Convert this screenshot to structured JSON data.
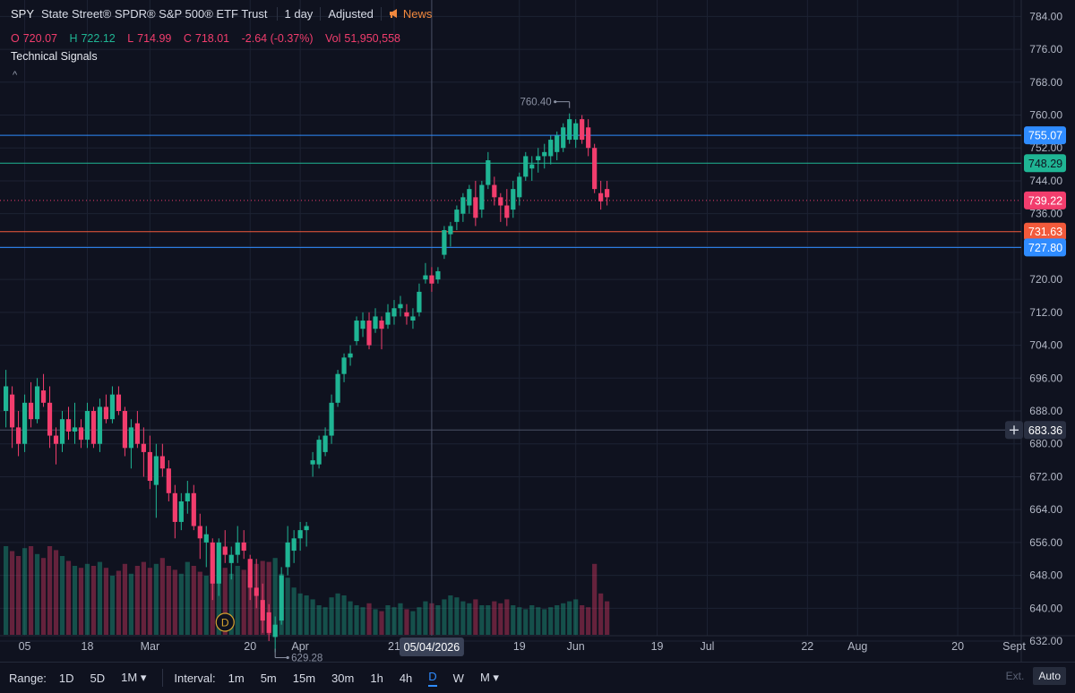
{
  "header": {
    "symbol": "SPY",
    "description": "State Street® SPDR® S&P 500® ETF Trust",
    "interval": "1 day",
    "adjusted": "Adjusted",
    "news": "News",
    "technical_signals": "Technical Signals",
    "collapse_caret": "^"
  },
  "ohlc": {
    "o_label": "O",
    "o": "720.07",
    "h_label": "H",
    "h": "722.12",
    "l_label": "L",
    "l": "714.99",
    "c_label": "C",
    "c": "718.01",
    "change": "-2.64 (-0.37%)",
    "vol_label": "Vol",
    "vol": "51,950,558"
  },
  "toolbar": {
    "range_label": "Range:",
    "ranges": [
      "1D",
      "5D",
      "1M ▾"
    ],
    "interval_label": "Interval:",
    "intervals": [
      "1m",
      "5m",
      "15m",
      "30m",
      "1h",
      "4h",
      "D",
      "W",
      "M ▾"
    ],
    "active_interval": "D",
    "ext": "Ext.",
    "auto": "Auto"
  },
  "chart_data": {
    "type": "candlestick",
    "y_range": [
      627,
      788
    ],
    "y_ticks": [
      632,
      640,
      648,
      656,
      664,
      672,
      680,
      688,
      696,
      704,
      712,
      720,
      728,
      736,
      744,
      752,
      760,
      768,
      776,
      784
    ],
    "y_tick_labels": [
      "632.00",
      "640.00",
      "648.00",
      "656.00",
      "664.00",
      "672.00",
      "680.00",
      "688.00",
      "696.00",
      "704.00",
      "712.00",
      "720.00",
      "728.00",
      "736.00",
      "744.00",
      "752.00",
      "760.00",
      "768.00",
      "776.00",
      "784.00"
    ],
    "x_tick_labels": [
      {
        "label": "05",
        "day": 3
      },
      {
        "label": "18",
        "day": 13
      },
      {
        "label": "Mar",
        "day": 23
      },
      {
        "label": "20",
        "day": 39
      },
      {
        "label": "Apr",
        "day": 47
      },
      {
        "label": "21",
        "day": 62
      },
      {
        "label": "19",
        "day": 82
      },
      {
        "label": "Jun",
        "day": 91
      },
      {
        "label": "19",
        "day": 104
      },
      {
        "label": "Jul",
        "day": 112
      },
      {
        "label": "22",
        "day": 128
      },
      {
        "label": "Aug",
        "day": 136
      },
      {
        "label": "20",
        "day": 152
      },
      {
        "label": "Sept",
        "day": 161
      }
    ],
    "crosshair": {
      "day": 68,
      "date_label": "05/04/2026",
      "price_label": "683.36",
      "price": 683.36
    },
    "price_lines": [
      {
        "price": 755.07,
        "label": "755.07",
        "color": "#2f8cff"
      },
      {
        "price": 748.29,
        "label": "748.29",
        "color": "#1fb594"
      },
      {
        "price": 739.22,
        "label": "739.22",
        "color": "#f23d6d",
        "dashed": true
      },
      {
        "price": 731.63,
        "label": "731.63",
        "color": "#f25a3b"
      },
      {
        "price": 727.8,
        "label": "727.80",
        "color": "#2f8cff"
      }
    ],
    "high_marker": {
      "day": 90,
      "price": 760.4,
      "label": "760.40"
    },
    "low_marker": {
      "day": 43,
      "price": 629.28,
      "label": "629.28"
    },
    "event_marker": {
      "day": 35,
      "label": "D"
    },
    "candles": [
      {
        "d": 0,
        "o": 688,
        "h": 698,
        "l": 684,
        "c": 694
      },
      {
        "d": 1,
        "o": 692,
        "h": 694,
        "l": 679,
        "c": 684
      },
      {
        "d": 2,
        "o": 684,
        "h": 688,
        "l": 677,
        "c": 680
      },
      {
        "d": 3,
        "o": 680,
        "h": 692,
        "l": 678,
        "c": 690
      },
      {
        "d": 4,
        "o": 690,
        "h": 695,
        "l": 684,
        "c": 686
      },
      {
        "d": 5,
        "o": 686,
        "h": 696,
        "l": 685,
        "c": 694
      },
      {
        "d": 6,
        "o": 693,
        "h": 697,
        "l": 689,
        "c": 690
      },
      {
        "d": 7,
        "o": 690,
        "h": 694,
        "l": 679,
        "c": 682
      },
      {
        "d": 8,
        "o": 682,
        "h": 684,
        "l": 675,
        "c": 680
      },
      {
        "d": 9,
        "o": 680,
        "h": 688,
        "l": 678,
        "c": 686
      },
      {
        "d": 10,
        "o": 686,
        "h": 689,
        "l": 681,
        "c": 683
      },
      {
        "d": 11,
        "o": 683,
        "h": 690,
        "l": 680,
        "c": 684
      },
      {
        "d": 12,
        "o": 684,
        "h": 686,
        "l": 679,
        "c": 681
      },
      {
        "d": 13,
        "o": 681,
        "h": 690,
        "l": 679,
        "c": 688
      },
      {
        "d": 14,
        "o": 688,
        "h": 689,
        "l": 679,
        "c": 680
      },
      {
        "d": 15,
        "o": 680,
        "h": 691,
        "l": 678,
        "c": 689
      },
      {
        "d": 16,
        "o": 689,
        "h": 692,
        "l": 685,
        "c": 686
      },
      {
        "d": 17,
        "o": 686,
        "h": 694,
        "l": 685,
        "c": 692
      },
      {
        "d": 18,
        "o": 692,
        "h": 694,
        "l": 687,
        "c": 688
      },
      {
        "d": 19,
        "o": 688,
        "h": 689,
        "l": 677,
        "c": 679
      },
      {
        "d": 20,
        "o": 679,
        "h": 686,
        "l": 674,
        "c": 684
      },
      {
        "d": 21,
        "o": 685,
        "h": 688,
        "l": 679,
        "c": 680
      },
      {
        "d": 22,
        "o": 680,
        "h": 684,
        "l": 672,
        "c": 678
      },
      {
        "d": 23,
        "o": 678,
        "h": 682,
        "l": 669,
        "c": 671
      },
      {
        "d": 24,
        "o": 670,
        "h": 680,
        "l": 662,
        "c": 677
      },
      {
        "d": 25,
        "o": 677,
        "h": 680,
        "l": 672,
        "c": 674
      },
      {
        "d": 26,
        "o": 674,
        "h": 676,
        "l": 666,
        "c": 668
      },
      {
        "d": 27,
        "o": 668,
        "h": 670,
        "l": 657,
        "c": 661
      },
      {
        "d": 28,
        "o": 661,
        "h": 668,
        "l": 659,
        "c": 666
      },
      {
        "d": 29,
        "o": 666,
        "h": 671,
        "l": 663,
        "c": 668
      },
      {
        "d": 30,
        "o": 668,
        "h": 670,
        "l": 659,
        "c": 660
      },
      {
        "d": 31,
        "o": 660,
        "h": 663,
        "l": 652,
        "c": 657
      },
      {
        "d": 32,
        "o": 656,
        "h": 660,
        "l": 650,
        "c": 658
      },
      {
        "d": 33,
        "o": 656,
        "h": 657,
        "l": 642,
        "c": 646
      },
      {
        "d": 34,
        "o": 646,
        "h": 657,
        "l": 643,
        "c": 656
      },
      {
        "d": 35,
        "o": 655,
        "h": 659,
        "l": 651,
        "c": 653
      },
      {
        "d": 36,
        "o": 651,
        "h": 655,
        "l": 647,
        "c": 653
      },
      {
        "d": 37,
        "o": 653,
        "h": 660,
        "l": 651,
        "c": 656
      },
      {
        "d": 38,
        "o": 656,
        "h": 659,
        "l": 652,
        "c": 654
      },
      {
        "d": 39,
        "o": 652,
        "h": 653,
        "l": 642,
        "c": 645
      },
      {
        "d": 40,
        "o": 645,
        "h": 652,
        "l": 640,
        "c": 643
      },
      {
        "d": 41,
        "o": 642,
        "h": 646,
        "l": 634,
        "c": 637
      },
      {
        "d": 42,
        "o": 639,
        "h": 641,
        "l": 632,
        "c": 634
      },
      {
        "d": 43,
        "o": 633,
        "h": 638,
        "l": 629.28,
        "c": 636
      },
      {
        "d": 44,
        "o": 637,
        "h": 650,
        "l": 636,
        "c": 648
      },
      {
        "d": 45,
        "o": 650,
        "h": 660,
        "l": 648,
        "c": 656
      },
      {
        "d": 46,
        "o": 654,
        "h": 659,
        "l": 651,
        "c": 657
      },
      {
        "d": 47,
        "o": 657,
        "h": 661,
        "l": 654,
        "c": 659
      },
      {
        "d": 48,
        "o": 659,
        "h": 661,
        "l": 655,
        "c": 660
      },
      {
        "d": 49,
        "o": 675,
        "h": 678,
        "l": 672,
        "c": 676
      },
      {
        "d": 50,
        "o": 675,
        "h": 682,
        "l": 674,
        "c": 681
      },
      {
        "d": 51,
        "o": 678,
        "h": 684,
        "l": 677,
        "c": 682
      },
      {
        "d": 52,
        "o": 682,
        "h": 692,
        "l": 680,
        "c": 690
      },
      {
        "d": 53,
        "o": 690,
        "h": 698,
        "l": 689,
        "c": 697
      },
      {
        "d": 54,
        "o": 697,
        "h": 702,
        "l": 695,
        "c": 701
      },
      {
        "d": 55,
        "o": 701,
        "h": 704,
        "l": 699,
        "c": 702
      },
      {
        "d": 56,
        "o": 705,
        "h": 711,
        "l": 704,
        "c": 710
      },
      {
        "d": 57,
        "o": 708,
        "h": 712,
        "l": 706,
        "c": 710
      },
      {
        "d": 58,
        "o": 710,
        "h": 712,
        "l": 703,
        "c": 704
      },
      {
        "d": 59,
        "o": 708,
        "h": 713,
        "l": 707,
        "c": 711
      },
      {
        "d": 60,
        "o": 710,
        "h": 711,
        "l": 703,
        "c": 708
      },
      {
        "d": 61,
        "o": 709,
        "h": 714,
        "l": 708,
        "c": 712
      },
      {
        "d": 62,
        "o": 711,
        "h": 715,
        "l": 709,
        "c": 713
      },
      {
        "d": 63,
        "o": 713,
        "h": 716,
        "l": 711,
        "c": 714
      },
      {
        "d": 64,
        "o": 712,
        "h": 714,
        "l": 709,
        "c": 711
      },
      {
        "d": 65,
        "o": 710,
        "h": 713,
        "l": 708,
        "c": 711
      },
      {
        "d": 66,
        "o": 712,
        "h": 719,
        "l": 711,
        "c": 717
      },
      {
        "d": 67,
        "o": 720,
        "h": 724,
        "l": 719,
        "c": 721
      },
      {
        "d": 68,
        "o": 721,
        "h": 723,
        "l": 717,
        "c": 719
      },
      {
        "d": 69,
        "o": 720,
        "h": 723,
        "l": 719,
        "c": 722
      },
      {
        "d": 70,
        "o": 726,
        "h": 733,
        "l": 725,
        "c": 732
      },
      {
        "d": 71,
        "o": 731,
        "h": 734,
        "l": 728,
        "c": 733
      },
      {
        "d": 72,
        "o": 734,
        "h": 738,
        "l": 732,
        "c": 737
      },
      {
        "d": 73,
        "o": 736,
        "h": 741,
        "l": 734,
        "c": 740
      },
      {
        "d": 74,
        "o": 738,
        "h": 743,
        "l": 736,
        "c": 742
      },
      {
        "d": 75,
        "o": 740,
        "h": 744,
        "l": 733,
        "c": 735
      },
      {
        "d": 76,
        "o": 737,
        "h": 744,
        "l": 735,
        "c": 743
      },
      {
        "d": 77,
        "o": 743,
        "h": 751,
        "l": 742,
        "c": 749
      },
      {
        "d": 78,
        "o": 743,
        "h": 745,
        "l": 738,
        "c": 740
      },
      {
        "d": 79,
        "o": 740,
        "h": 741,
        "l": 734,
        "c": 738
      },
      {
        "d": 80,
        "o": 738,
        "h": 742,
        "l": 733,
        "c": 735
      },
      {
        "d": 81,
        "o": 737,
        "h": 744,
        "l": 735,
        "c": 742
      },
      {
        "d": 82,
        "o": 740,
        "h": 746,
        "l": 738,
        "c": 745
      },
      {
        "d": 83,
        "o": 745,
        "h": 751,
        "l": 744,
        "c": 750
      },
      {
        "d": 84,
        "o": 747,
        "h": 750,
        "l": 744,
        "c": 748
      },
      {
        "d": 85,
        "o": 749,
        "h": 752,
        "l": 746,
        "c": 750
      },
      {
        "d": 86,
        "o": 750,
        "h": 753,
        "l": 747,
        "c": 751
      },
      {
        "d": 87,
        "o": 750,
        "h": 755,
        "l": 748,
        "c": 754
      },
      {
        "d": 88,
        "o": 751,
        "h": 756,
        "l": 749,
        "c": 755
      },
      {
        "d": 89,
        "o": 752,
        "h": 758,
        "l": 751,
        "c": 757
      },
      {
        "d": 90,
        "o": 754,
        "h": 760.4,
        "l": 753,
        "c": 759
      },
      {
        "d": 91,
        "o": 754,
        "h": 759,
        "l": 752,
        "c": 758
      },
      {
        "d": 92,
        "o": 759,
        "h": 760,
        "l": 753,
        "c": 754
      },
      {
        "d": 93,
        "o": 757,
        "h": 759,
        "l": 750,
        "c": 752
      },
      {
        "d": 94,
        "o": 752,
        "h": 753,
        "l": 741,
        "c": 742
      },
      {
        "d": 95,
        "o": 741,
        "h": 744,
        "l": 737,
        "c": 739
      },
      {
        "d": 96,
        "o": 742,
        "h": 744,
        "l": 738,
        "c": 740
      }
    ],
    "volume": [
      0.9,
      0.85,
      0.8,
      0.88,
      0.9,
      0.82,
      0.78,
      0.9,
      0.86,
      0.8,
      0.75,
      0.7,
      0.68,
      0.72,
      0.7,
      0.74,
      0.68,
      0.6,
      0.65,
      0.72,
      0.62,
      0.7,
      0.74,
      0.68,
      0.72,
      0.78,
      0.7,
      0.66,
      0.62,
      0.74,
      0.7,
      0.64,
      0.6,
      0.82,
      0.78,
      0.68,
      0.62,
      0.7,
      0.66,
      0.6,
      0.72,
      0.75,
      0.74,
      0.78,
      0.62,
      0.58,
      0.48,
      0.42,
      0.4,
      0.36,
      0.3,
      0.28,
      0.38,
      0.42,
      0.4,
      0.34,
      0.3,
      0.28,
      0.32,
      0.26,
      0.24,
      0.3,
      0.28,
      0.32,
      0.26,
      0.24,
      0.28,
      0.34,
      0.32,
      0.3,
      0.36,
      0.4,
      0.38,
      0.34,
      0.32,
      0.36,
      0.3,
      0.3,
      0.34,
      0.32,
      0.36,
      0.3,
      0.28,
      0.26,
      0.3,
      0.28,
      0.26,
      0.28,
      0.3,
      0.32,
      0.34,
      0.36,
      0.3,
      0.28,
      0.72,
      0.42,
      0.34
    ]
  }
}
